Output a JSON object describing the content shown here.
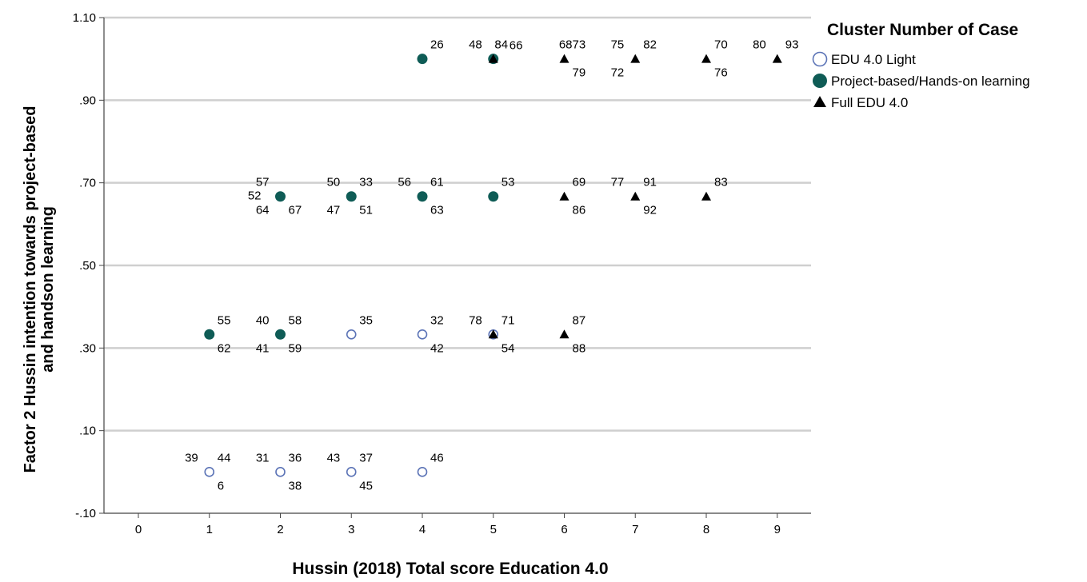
{
  "chart_data": {
    "type": "scatter",
    "title": "",
    "xlabel": "Hussin (2018) Total score Education 4.0",
    "ylabel_lines": [
      "Factor 2 Hussin intention towards project-based",
      "and handson learning"
    ],
    "xlim": [
      -0.5,
      9.5
    ],
    "ylim": [
      -0.1,
      1.1
    ],
    "x_ticks": [
      "0",
      "1",
      "2",
      "3",
      "4",
      "5",
      "6",
      "7",
      "8",
      "9"
    ],
    "y_ticks": [
      {
        "value": 1.1,
        "label": "1.10"
      },
      {
        "value": 0.9,
        "label": ".90"
      },
      {
        "value": 0.7,
        "label": ".70"
      },
      {
        "value": 0.5,
        "label": ".50"
      },
      {
        "value": 0.3,
        "label": ".30"
      },
      {
        "value": 0.1,
        "label": ".10"
      },
      {
        "value": -0.1,
        "label": "-.10"
      }
    ],
    "grid": "horizontal",
    "legend": {
      "title": "Cluster Number of Case",
      "position": "top-right",
      "entries": [
        {
          "name": "EDU 4.0 Light",
          "marker": "open-circle",
          "color": "#5b73b6"
        },
        {
          "name": "Project-based/Hands-on learning",
          "marker": "filled-circle",
          "color": "#0f5c56"
        },
        {
          "name": "Full EDU 4.0",
          "marker": "triangle",
          "color": "#000000"
        }
      ]
    },
    "series": [
      {
        "name": "EDU 4.0 Light",
        "points": [
          {
            "x": 1,
            "y": 0
          },
          {
            "x": 2,
            "y": 0
          },
          {
            "x": 3,
            "y": 0
          },
          {
            "x": 4,
            "y": 0
          },
          {
            "x": 3,
            "y": 0.333
          },
          {
            "x": 4,
            "y": 0.333
          },
          {
            "x": 5,
            "y": 0.333
          }
        ]
      },
      {
        "name": "Project-based/Hands-on learning",
        "points": [
          {
            "x": 1,
            "y": 0.333
          },
          {
            "x": 2,
            "y": 0.333
          },
          {
            "x": 2,
            "y": 0.667
          },
          {
            "x": 3,
            "y": 0.667
          },
          {
            "x": 4,
            "y": 0.667
          },
          {
            "x": 5,
            "y": 0.667
          },
          {
            "x": 4,
            "y": 1
          },
          {
            "x": 5,
            "y": 1
          }
        ]
      },
      {
        "name": "Full EDU 4.0",
        "points": [
          {
            "x": 5,
            "y": 0.333
          },
          {
            "x": 6,
            "y": 0.333
          },
          {
            "x": 6,
            "y": 0.667
          },
          {
            "x": 7,
            "y": 0.667
          },
          {
            "x": 8,
            "y": 0.667
          },
          {
            "x": 5,
            "y": 1
          },
          {
            "x": 6,
            "y": 1
          },
          {
            "x": 7,
            "y": 1
          },
          {
            "x": 8,
            "y": 1
          },
          {
            "x": 9,
            "y": 1
          }
        ]
      }
    ],
    "case_labels": [
      {
        "x": 1,
        "y": 0,
        "labels": [
          {
            "text": "39",
            "pos": "ul"
          },
          {
            "text": "44",
            "pos": "ur"
          },
          {
            "text": "6",
            "pos": "lr"
          }
        ]
      },
      {
        "x": 2,
        "y": 0,
        "labels": [
          {
            "text": "31",
            "pos": "ul"
          },
          {
            "text": "36",
            "pos": "ur"
          },
          {
            "text": "38",
            "pos": "lr"
          }
        ]
      },
      {
        "x": 3,
        "y": 0,
        "labels": [
          {
            "text": "43",
            "pos": "ul"
          },
          {
            "text": "37",
            "pos": "ur"
          },
          {
            "text": "45",
            "pos": "lr"
          }
        ]
      },
      {
        "x": 4,
        "y": 0,
        "labels": [
          {
            "text": "46",
            "pos": "ur"
          }
        ]
      },
      {
        "x": 1,
        "y": 0.333,
        "labels": [
          {
            "text": "55",
            "pos": "ur"
          },
          {
            "text": "62",
            "pos": "lr"
          }
        ]
      },
      {
        "x": 2,
        "y": 0.333,
        "labels": [
          {
            "text": "40",
            "pos": "ul"
          },
          {
            "text": "58",
            "pos": "ur"
          },
          {
            "text": "41",
            "pos": "ll"
          },
          {
            "text": "59",
            "pos": "lr"
          }
        ]
      },
      {
        "x": 3,
        "y": 0.333,
        "labels": [
          {
            "text": "35",
            "pos": "ur"
          }
        ]
      },
      {
        "x": 4,
        "y": 0.333,
        "labels": [
          {
            "text": "32",
            "pos": "ur"
          },
          {
            "text": "42",
            "pos": "lr"
          }
        ]
      },
      {
        "x": 5,
        "y": 0.333,
        "labels": [
          {
            "text": "78",
            "pos": "ul"
          },
          {
            "text": "71",
            "pos": "ur"
          },
          {
            "text": "54",
            "pos": "lr"
          }
        ]
      },
      {
        "x": 6,
        "y": 0.333,
        "labels": [
          {
            "text": "87",
            "pos": "ur"
          },
          {
            "text": "88",
            "pos": "lr"
          }
        ]
      },
      {
        "x": 2,
        "y": 0.667,
        "labels": [
          {
            "text": "57",
            "pos": "ul"
          },
          {
            "text": "52",
            "pos": "l"
          },
          {
            "text": "64",
            "pos": "ll"
          },
          {
            "text": "67",
            "pos": "lr"
          }
        ]
      },
      {
        "x": 3,
        "y": 0.667,
        "labels": [
          {
            "text": "50",
            "pos": "ul"
          },
          {
            "text": "33",
            "pos": "ur"
          },
          {
            "text": "47",
            "pos": "ll"
          },
          {
            "text": "51",
            "pos": "lr"
          }
        ]
      },
      {
        "x": 4,
        "y": 0.667,
        "labels": [
          {
            "text": "56",
            "pos": "ul"
          },
          {
            "text": "61",
            "pos": "ur"
          },
          {
            "text": "63",
            "pos": "lr"
          }
        ]
      },
      {
        "x": 5,
        "y": 0.667,
        "labels": [
          {
            "text": "53",
            "pos": "ur"
          }
        ]
      },
      {
        "x": 6,
        "y": 0.667,
        "labels": [
          {
            "text": "69",
            "pos": "ur"
          },
          {
            "text": "86",
            "pos": "lr"
          }
        ]
      },
      {
        "x": 7,
        "y": 0.667,
        "labels": [
          {
            "text": "77",
            "pos": "ul"
          },
          {
            "text": "91",
            "pos": "ur"
          },
          {
            "text": "92",
            "pos": "lr"
          }
        ]
      },
      {
        "x": 8,
        "y": 0.667,
        "labels": [
          {
            "text": "83",
            "pos": "ur"
          }
        ]
      },
      {
        "x": 4,
        "y": 1,
        "labels": [
          {
            "text": "26",
            "pos": "ur"
          }
        ]
      },
      {
        "x": 5,
        "y": 1,
        "labels": [
          {
            "text": "48",
            "pos": "ul"
          },
          {
            "text": "84",
            "pos": "uc"
          },
          {
            "text": "66",
            "pos": "ur2"
          }
        ]
      },
      {
        "x": 6,
        "y": 1,
        "labels": [
          {
            "text": "6873",
            "pos": "uc"
          },
          {
            "text": "79",
            "pos": "lr"
          }
        ]
      },
      {
        "x": 7,
        "y": 1,
        "labels": [
          {
            "text": "75",
            "pos": "ul"
          },
          {
            "text": "82",
            "pos": "ur"
          },
          {
            "text": "72",
            "pos": "ll"
          }
        ]
      },
      {
        "x": 8,
        "y": 1,
        "labels": [
          {
            "text": "70",
            "pos": "ur"
          },
          {
            "text": "76",
            "pos": "lr"
          }
        ]
      },
      {
        "x": 9,
        "y": 1,
        "labels": [
          {
            "text": "80",
            "pos": "ul"
          },
          {
            "text": "93",
            "pos": "ur"
          }
        ]
      }
    ]
  }
}
